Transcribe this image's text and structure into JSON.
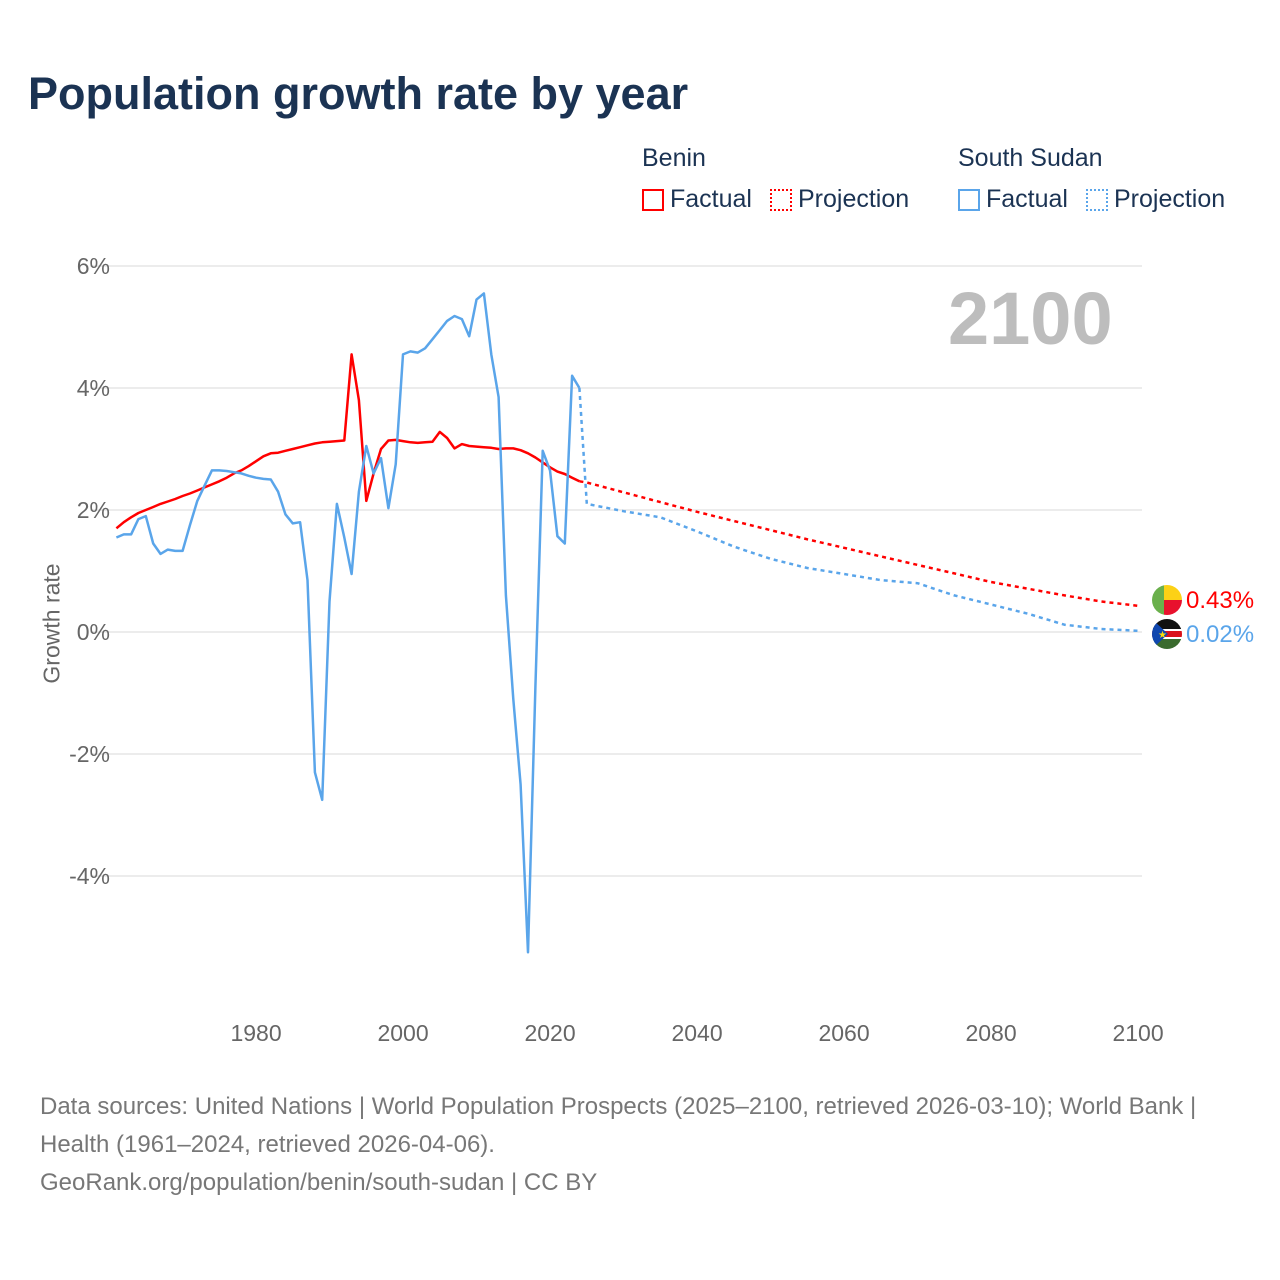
{
  "title": "Population growth rate by year",
  "legend": {
    "groups": [
      {
        "name": "Benin",
        "color": "#ff0000",
        "factual": "Factual",
        "projection": "Projection"
      },
      {
        "name": "South Sudan",
        "color": "#5aa5ea",
        "factual": "Factual",
        "projection": "Projection"
      }
    ]
  },
  "current_year": "2100",
  "end_labels": {
    "benin": "0.43%",
    "south_sudan": "0.02%"
  },
  "footer": {
    "sources": "Data sources: United Nations | World Population Prospects (2025–2100, retrieved 2026-03-10); World Bank | Health (1961–2024, retrieved 2026-04-06).",
    "credit": "GeoRank.org/population/benin/south-sudan | CC BY"
  },
  "chart_data": {
    "type": "line",
    "title": "Population growth rate by year",
    "xlabel": "",
    "ylabel": "Growth rate",
    "xlim": [
      1961,
      2100
    ],
    "ylim": [
      -5.6,
      6.2
    ],
    "x_ticks": [
      1980,
      2000,
      2020,
      2040,
      2060,
      2080,
      2100
    ],
    "x_tick_labels": [
      "1980",
      "2000",
      "2020",
      "2040",
      "2060",
      "2080",
      "2100"
    ],
    "y_ticks": [
      6,
      4,
      2,
      0,
      -2,
      -4
    ],
    "y_tick_labels": [
      "6%",
      "4%",
      "2%",
      "0%",
      "-2%",
      "-4%"
    ],
    "grid": true,
    "legend_position": "top-right",
    "series": [
      {
        "name": "Benin",
        "kind": "Factual",
        "color": "#ff0000",
        "start_year": 1961,
        "values": [
          1.7,
          1.8,
          1.88,
          1.95,
          2.0,
          2.05,
          2.1,
          2.14,
          2.18,
          2.23,
          2.27,
          2.32,
          2.37,
          2.42,
          2.47,
          2.53,
          2.6,
          2.65,
          2.72,
          2.8,
          2.88,
          2.93,
          2.94,
          2.97,
          3.0,
          3.03,
          3.06,
          3.09,
          3.11,
          3.12,
          3.13,
          3.14,
          4.55,
          3.8,
          2.15,
          2.6,
          3.0,
          3.14,
          3.15,
          3.13,
          3.11,
          3.1,
          3.11,
          3.12,
          3.28,
          3.18,
          3.01,
          3.08,
          3.05,
          3.04,
          3.03,
          3.02,
          3.0,
          3.01,
          3.01,
          2.98,
          2.93,
          2.86,
          2.78,
          2.7,
          2.63,
          2.59,
          2.53,
          2.47
        ]
      },
      {
        "name": "Benin",
        "kind": "Projection",
        "color": "#ff0000",
        "x": [
          2024,
          2025,
          2030,
          2035,
          2040,
          2045,
          2050,
          2055,
          2060,
          2065,
          2070,
          2075,
          2080,
          2085,
          2090,
          2095,
          2100
        ],
        "values": [
          2.47,
          2.45,
          2.29,
          2.13,
          1.97,
          1.82,
          1.67,
          1.52,
          1.38,
          1.24,
          1.1,
          0.96,
          0.82,
          0.71,
          0.6,
          0.5,
          0.43
        ]
      },
      {
        "name": "South Sudan",
        "kind": "Factual",
        "color": "#5aa5ea",
        "start_year": 1961,
        "values": [
          1.55,
          1.6,
          1.6,
          1.85,
          1.9,
          1.45,
          1.28,
          1.35,
          1.33,
          1.33,
          1.75,
          2.15,
          2.4,
          2.65,
          2.65,
          2.64,
          2.62,
          2.6,
          2.56,
          2.53,
          2.51,
          2.5,
          2.3,
          1.93,
          1.78,
          1.8,
          0.85,
          -2.3,
          -2.75,
          0.5,
          2.1,
          1.55,
          0.95,
          2.3,
          3.05,
          2.6,
          2.85,
          2.03,
          2.75,
          4.55,
          4.6,
          4.58,
          4.65,
          4.8,
          4.95,
          5.1,
          5.18,
          5.13,
          4.85,
          5.45,
          5.55,
          4.55,
          3.85,
          0.6,
          -1.1,
          -2.5,
          -5.25,
          -0.9,
          2.97,
          2.65,
          1.57,
          1.45,
          4.2,
          4.0
        ]
      },
      {
        "name": "South Sudan",
        "kind": "Projection",
        "color": "#5aa5ea",
        "x": [
          2024,
          2025,
          2030,
          2035,
          2040,
          2045,
          2050,
          2055,
          2060,
          2065,
          2070,
          2075,
          2080,
          2085,
          2090,
          2095,
          2100
        ],
        "values": [
          4.0,
          2.1,
          1.98,
          1.88,
          1.65,
          1.4,
          1.2,
          1.05,
          0.95,
          0.85,
          0.8,
          0.6,
          0.45,
          0.3,
          0.12,
          0.05,
          0.02
        ]
      }
    ]
  }
}
